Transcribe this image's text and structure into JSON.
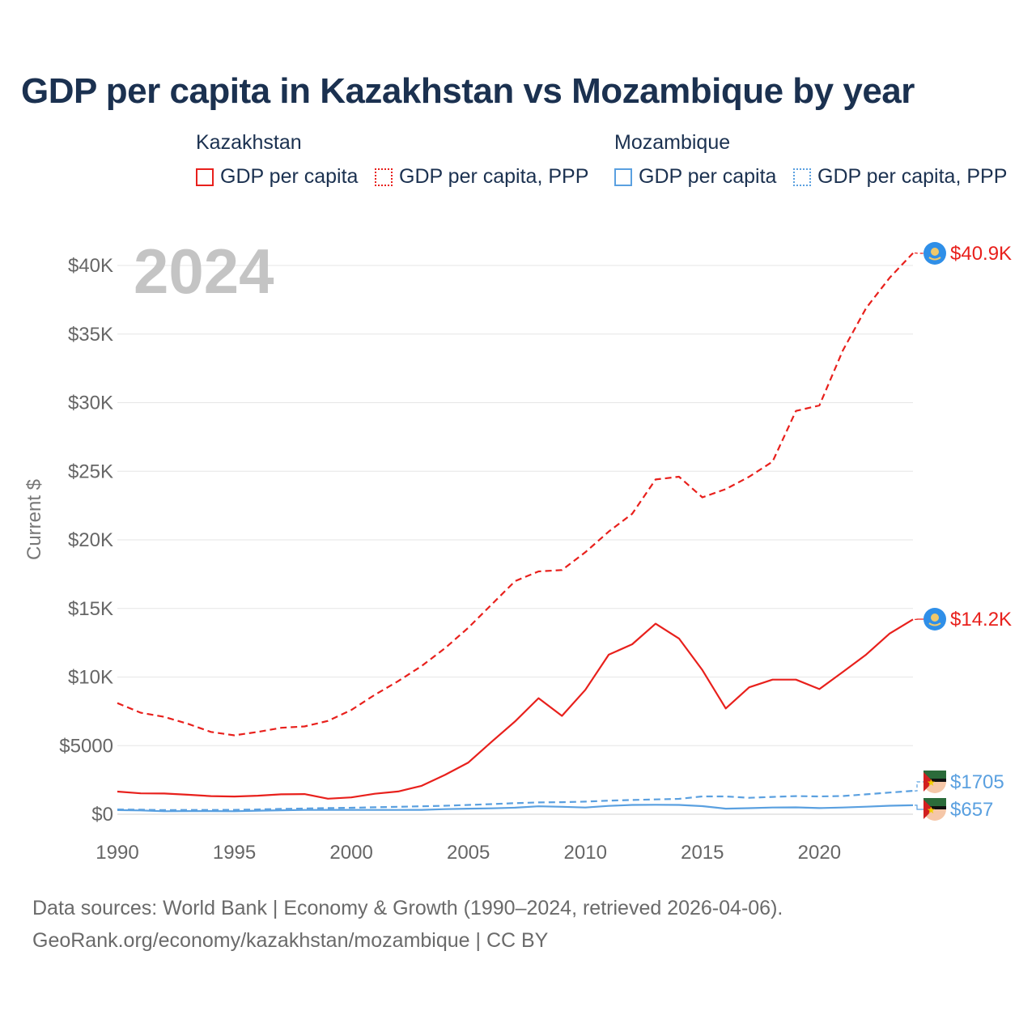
{
  "title": "GDP per capita in Kazakhstan vs Mozambique by year",
  "legend": {
    "groups": [
      {
        "country": "Kazakhstan",
        "items": [
          "GDP per capita",
          "GDP per capita, PPP"
        ]
      },
      {
        "country": "Mozambique",
        "items": [
          "GDP per capita",
          "GDP per capita, PPP"
        ]
      }
    ]
  },
  "footer": {
    "line1": "Data sources: World Bank | Economy & Growth (1990–2024, retrieved 2026-04-06).",
    "line2": "GeoRank.org/economy/kazakhstan/mozambique | CC BY"
  },
  "colors": {
    "kazakhstan": "#e8201c",
    "mozambique": "#5aa0e0"
  },
  "chart_data": {
    "type": "line",
    "year_label": "2024",
    "ylabel": "Current $",
    "xlabel": "",
    "xlim": [
      1990,
      2024
    ],
    "ylim": [
      0,
      42000
    ],
    "x_ticks": [
      1990,
      1995,
      2000,
      2005,
      2010,
      2015,
      2020
    ],
    "x_tick_labels": [
      "1990",
      "1995",
      "2000",
      "2005",
      "2010",
      "2015",
      "2020"
    ],
    "y_ticks": [
      0,
      5000,
      10000,
      15000,
      20000,
      25000,
      30000,
      35000,
      40000
    ],
    "y_tick_labels": [
      "$0",
      "$5000",
      "$10K",
      "$15K",
      "$20K",
      "$25K",
      "$30K",
      "$35K",
      "$40K"
    ],
    "x": [
      1990,
      1991,
      1992,
      1993,
      1994,
      1995,
      1996,
      1997,
      1998,
      1999,
      2000,
      2001,
      2002,
      2003,
      2004,
      2005,
      2006,
      2007,
      2008,
      2009,
      2010,
      2011,
      2012,
      2013,
      2014,
      2015,
      2016,
      2017,
      2018,
      2019,
      2020,
      2021,
      2022,
      2023,
      2024
    ],
    "series": [
      {
        "name": "GDP per capita",
        "country": "Kazakhstan",
        "color": "#e8201c",
        "dash": "solid",
        "end_label": "$14.2K",
        "values": [
          1650,
          1520,
          1510,
          1420,
          1320,
          1290,
          1350,
          1450,
          1470,
          1130,
          1230,
          1490,
          1660,
          2070,
          2870,
          3770,
          5290,
          6770,
          8460,
          7170,
          9070,
          11630,
          12390,
          13890,
          12810,
          10510,
          7710,
          9250,
          9810,
          9810,
          9120,
          10370,
          11640,
          13170,
          14200
        ]
      },
      {
        "name": "GDP per capita, PPP",
        "country": "Kazakhstan",
        "color": "#e8201c",
        "dash": "dashed",
        "end_label": "$40.9K",
        "values": [
          8100,
          7400,
          7100,
          6600,
          6000,
          5750,
          6000,
          6300,
          6400,
          6800,
          7600,
          8700,
          9700,
          10800,
          12100,
          13600,
          15300,
          17000,
          17700,
          17800,
          19100,
          20600,
          21900,
          24400,
          24600,
          23100,
          23700,
          24600,
          25700,
          29400,
          29800,
          33800,
          36900,
          39100,
          40900
        ]
      },
      {
        "name": "GDP per capita",
        "country": "Mozambique",
        "color": "#5aa0e0",
        "dash": "solid",
        "end_label": "$657",
        "values": [
          300,
          280,
          220,
          230,
          230,
          220,
          260,
          290,
          310,
          320,
          320,
          310,
          310,
          320,
          370,
          410,
          430,
          480,
          580,
          540,
          490,
          610,
          680,
          690,
          680,
          590,
          410,
          440,
          490,
          500,
          450,
          490,
          550,
          620,
          657
        ]
      },
      {
        "name": "GDP per capita, PPP",
        "country": "Mozambique",
        "color": "#5aa0e0",
        "dash": "dashed",
        "end_label": "$1705",
        "values": [
          350,
          330,
          300,
          310,
          310,
          320,
          350,
          390,
          420,
          450,
          470,
          510,
          540,
          580,
          620,
          680,
          740,
          810,
          860,
          880,
          920,
          990,
          1040,
          1080,
          1120,
          1300,
          1300,
          1200,
          1260,
          1320,
          1300,
          1330,
          1450,
          1580,
          1705
        ]
      }
    ]
  }
}
